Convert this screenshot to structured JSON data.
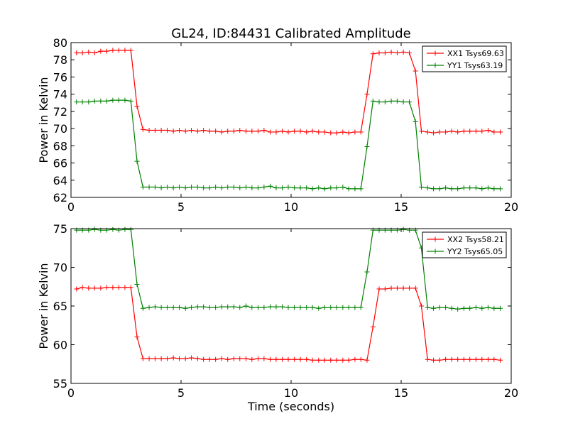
{
  "figure": {
    "title": "GL24, ID:84431 Calibrated Amplitude"
  },
  "chart_data": [
    {
      "type": "line",
      "title": "GL24, ID:84431 Calibrated Amplitude",
      "xlabel": "",
      "ylabel": "Power in Kelvin",
      "xlim": [
        0,
        20
      ],
      "ylim": [
        62,
        80
      ],
      "x_ticks": [
        "0",
        "5",
        "10",
        "15",
        "20"
      ],
      "y_ticks": [
        "62",
        "64",
        "66",
        "68",
        "70",
        "72",
        "74",
        "76",
        "78",
        "80"
      ],
      "legend_position": "top-right",
      "grid": false,
      "x": [
        0.25,
        0.52,
        0.8,
        1.07,
        1.35,
        1.62,
        1.9,
        2.17,
        2.45,
        2.72,
        3.0,
        3.27,
        3.55,
        3.82,
        4.1,
        4.37,
        4.65,
        4.92,
        5.2,
        5.47,
        5.75,
        6.02,
        6.3,
        6.57,
        6.85,
        7.12,
        7.4,
        7.67,
        7.95,
        8.22,
        8.5,
        8.77,
        9.05,
        9.32,
        9.6,
        9.87,
        10.15,
        10.42,
        10.7,
        10.97,
        11.25,
        11.52,
        11.8,
        12.07,
        12.35,
        12.62,
        12.9,
        13.17,
        13.45,
        13.72,
        14.0,
        14.27,
        14.55,
        14.82,
        15.1,
        15.37,
        15.65,
        15.92,
        16.2,
        16.47,
        16.75,
        17.02,
        17.3,
        17.57,
        17.85,
        18.12,
        18.4,
        18.67,
        18.95,
        19.22,
        19.5
      ],
      "series": [
        {
          "name": "XX1 Tsys69.63",
          "color": "#ff0000",
          "values": [
            78.8,
            78.8,
            78.9,
            78.8,
            79.0,
            79.0,
            79.1,
            79.1,
            79.1,
            79.1,
            72.6,
            69.9,
            69.8,
            69.8,
            69.8,
            69.8,
            69.7,
            69.8,
            69.7,
            69.8,
            69.7,
            69.8,
            69.7,
            69.7,
            69.6,
            69.7,
            69.7,
            69.8,
            69.7,
            69.7,
            69.7,
            69.8,
            69.6,
            69.6,
            69.7,
            69.6,
            69.7,
            69.7,
            69.6,
            69.7,
            69.6,
            69.6,
            69.5,
            69.5,
            69.6,
            69.5,
            69.6,
            69.6,
            74.0,
            78.7,
            78.8,
            78.8,
            78.9,
            78.8,
            78.9,
            78.8,
            76.7,
            69.7,
            69.6,
            69.5,
            69.6,
            69.6,
            69.7,
            69.6,
            69.7,
            69.7,
            69.7,
            69.7,
            69.8,
            69.6,
            69.6
          ]
        },
        {
          "name": "YY1 Tsys63.19",
          "color": "#008000",
          "values": [
            73.1,
            73.1,
            73.1,
            73.2,
            73.2,
            73.2,
            73.3,
            73.3,
            73.3,
            73.2,
            66.2,
            63.2,
            63.2,
            63.2,
            63.1,
            63.2,
            63.1,
            63.2,
            63.1,
            63.2,
            63.2,
            63.1,
            63.1,
            63.2,
            63.1,
            63.2,
            63.2,
            63.1,
            63.2,
            63.1,
            63.1,
            63.2,
            63.3,
            63.1,
            63.1,
            63.2,
            63.1,
            63.1,
            63.1,
            63.0,
            63.1,
            63.0,
            63.1,
            63.1,
            63.2,
            63.0,
            63.0,
            63.0,
            67.9,
            73.2,
            73.1,
            73.1,
            73.2,
            73.2,
            73.1,
            73.1,
            70.8,
            63.2,
            63.1,
            63.0,
            63.0,
            63.1,
            63.0,
            63.0,
            63.1,
            63.1,
            63.1,
            63.0,
            63.1,
            63.0,
            63.0
          ]
        }
      ]
    },
    {
      "type": "line",
      "title": "",
      "xlabel": "Time (seconds)",
      "ylabel": "Power in Kelvin",
      "xlim": [
        0,
        20
      ],
      "ylim": [
        55,
        75
      ],
      "x_ticks": [
        "0",
        "5",
        "10",
        "15",
        "20"
      ],
      "y_ticks": [
        "55",
        "60",
        "65",
        "70",
        "75"
      ],
      "legend_position": "top-right",
      "grid": false,
      "x": [
        0.25,
        0.52,
        0.8,
        1.07,
        1.35,
        1.62,
        1.9,
        2.17,
        2.45,
        2.72,
        3.0,
        3.27,
        3.55,
        3.82,
        4.1,
        4.37,
        4.65,
        4.92,
        5.2,
        5.47,
        5.75,
        6.02,
        6.3,
        6.57,
        6.85,
        7.12,
        7.4,
        7.67,
        7.95,
        8.22,
        8.5,
        8.77,
        9.05,
        9.32,
        9.6,
        9.87,
        10.15,
        10.42,
        10.7,
        10.97,
        11.25,
        11.52,
        11.8,
        12.07,
        12.35,
        12.62,
        12.9,
        13.17,
        13.45,
        13.72,
        14.0,
        14.27,
        14.55,
        14.82,
        15.1,
        15.37,
        15.65,
        15.92,
        16.2,
        16.47,
        16.75,
        17.02,
        17.3,
        17.57,
        17.85,
        18.12,
        18.4,
        18.67,
        18.95,
        19.22,
        19.5
      ],
      "series": [
        {
          "name": "XX2 Tsys58.21",
          "color": "#ff0000",
          "values": [
            67.2,
            67.4,
            67.3,
            67.3,
            67.3,
            67.4,
            67.4,
            67.4,
            67.4,
            67.4,
            61.0,
            58.2,
            58.2,
            58.2,
            58.2,
            58.2,
            58.3,
            58.2,
            58.2,
            58.3,
            58.2,
            58.1,
            58.1,
            58.1,
            58.2,
            58.1,
            58.2,
            58.2,
            58.2,
            58.1,
            58.2,
            58.2,
            58.1,
            58.1,
            58.1,
            58.1,
            58.1,
            58.1,
            58.1,
            58.0,
            58.0,
            58.0,
            58.0,
            58.0,
            58.0,
            58.0,
            58.1,
            58.1,
            58.0,
            62.3,
            67.2,
            67.2,
            67.3,
            67.3,
            67.3,
            67.3,
            67.3,
            65.0,
            58.1,
            58.0,
            58.0,
            58.1,
            58.1,
            58.1,
            58.1,
            58.1,
            58.1,
            58.1,
            58.1,
            58.1,
            58.0
          ]
        },
        {
          "name": "YY2 Tsys65.05",
          "color": "#008000",
          "values": [
            74.8,
            74.8,
            74.8,
            74.9,
            74.8,
            74.8,
            74.9,
            74.8,
            74.9,
            74.9,
            67.8,
            64.7,
            64.8,
            64.9,
            64.8,
            64.8,
            64.8,
            64.8,
            64.7,
            64.8,
            64.9,
            64.9,
            64.8,
            64.8,
            64.9,
            64.9,
            64.9,
            64.8,
            65.0,
            64.8,
            64.8,
            64.8,
            64.9,
            64.9,
            64.9,
            64.8,
            64.8,
            64.8,
            64.8,
            64.8,
            64.7,
            64.8,
            64.8,
            64.8,
            64.8,
            64.8,
            64.8,
            64.8,
            69.4,
            74.8,
            74.8,
            74.8,
            74.8,
            74.8,
            74.9,
            74.8,
            74.8,
            72.5,
            64.8,
            64.7,
            64.8,
            64.8,
            64.7,
            64.6,
            64.7,
            64.7,
            64.8,
            64.7,
            64.8,
            64.7,
            64.7
          ]
        }
      ]
    }
  ]
}
